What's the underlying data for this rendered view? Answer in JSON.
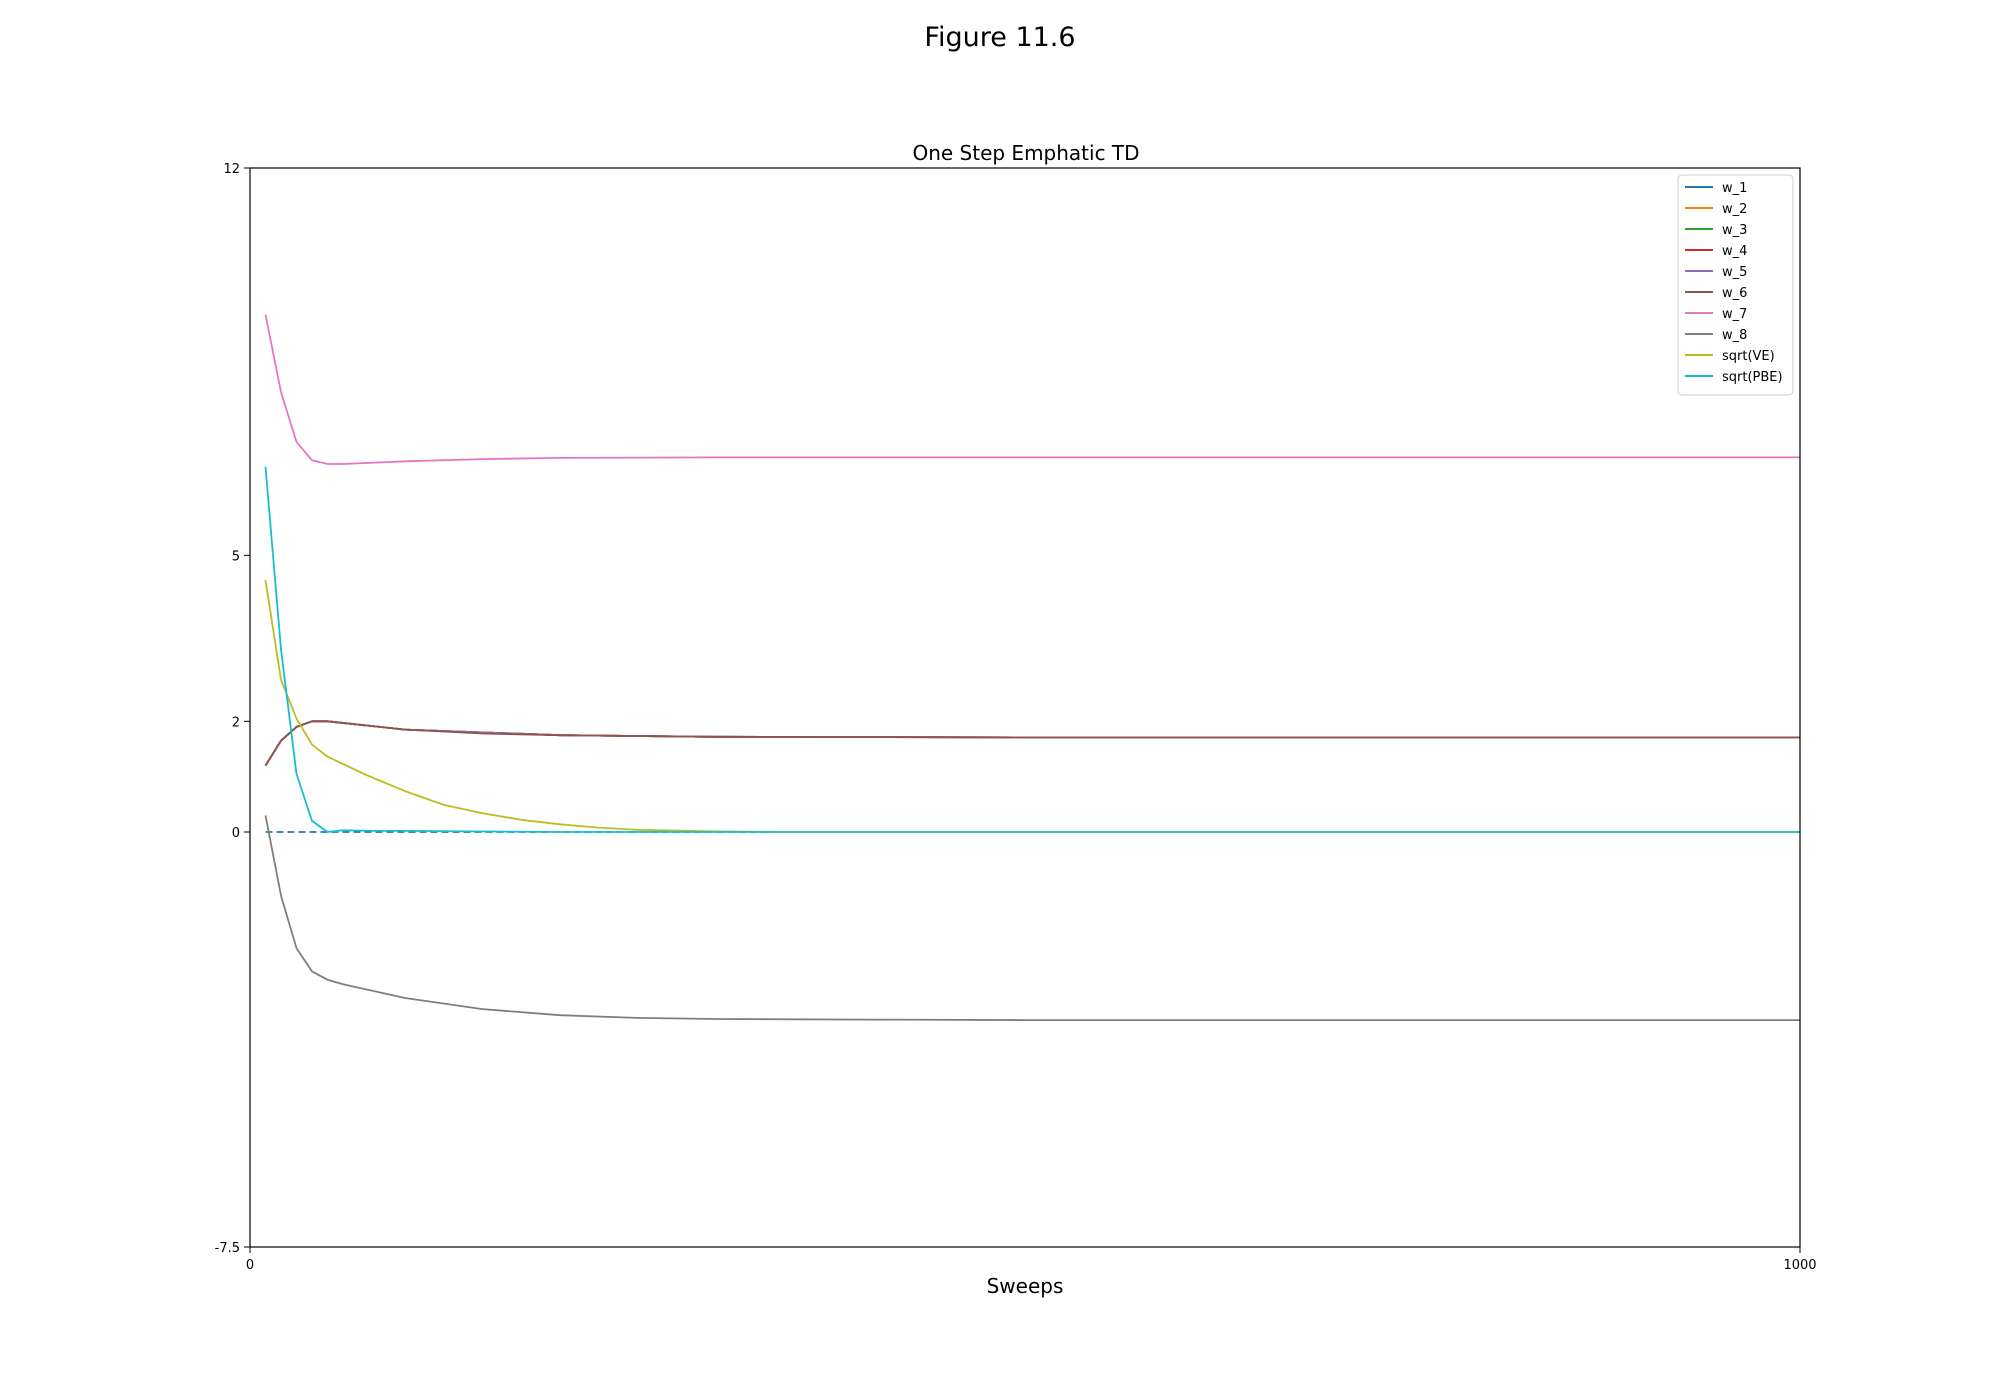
{
  "figure": {
    "title": "Figure 11.6"
  },
  "chart_data": {
    "type": "line",
    "title": "One Step Emphatic TD",
    "xlabel": "Sweeps",
    "ylabel": "",
    "xlim": [
      0,
      1000
    ],
    "ylim": [
      -7.5,
      12
    ],
    "xticks": [
      "0",
      "1000"
    ],
    "yticks": [
      {
        "value": 12,
        "label": "12"
      },
      {
        "value": 5,
        "label": "5"
      },
      {
        "value": 2,
        "label": "2"
      },
      {
        "value": 0,
        "label": "0"
      },
      {
        "value": -7.5,
        "label": "-7.5"
      }
    ],
    "grid": false,
    "legend_position": "top-right",
    "series": [
      {
        "name": "w_1",
        "color": "#1f77b4",
        "x": [
          10,
          20,
          30,
          40,
          50,
          100,
          200,
          300,
          500,
          1000
        ],
        "values": [
          1.2,
          1.65,
          1.9,
          2.0,
          2.0,
          1.85,
          1.75,
          1.72,
          1.71,
          1.71
        ]
      },
      {
        "name": "w_2",
        "color": "#ff7f0e",
        "x": [
          10,
          20,
          30,
          40,
          50,
          100,
          200,
          300,
          500,
          1000
        ],
        "values": [
          1.2,
          1.65,
          1.9,
          2.0,
          2.0,
          1.85,
          1.75,
          1.72,
          1.71,
          1.71
        ]
      },
      {
        "name": "w_3",
        "color": "#2ca02c",
        "x": [
          10,
          20,
          30,
          40,
          50,
          100,
          200,
          300,
          500,
          1000
        ],
        "values": [
          1.2,
          1.65,
          1.9,
          2.0,
          2.0,
          1.85,
          1.75,
          1.72,
          1.71,
          1.71
        ]
      },
      {
        "name": "w_4",
        "color": "#d62728",
        "x": [
          10,
          20,
          30,
          40,
          50,
          100,
          200,
          300,
          500,
          1000
        ],
        "values": [
          1.2,
          1.65,
          1.9,
          2.0,
          2.0,
          1.85,
          1.75,
          1.72,
          1.71,
          1.71
        ]
      },
      {
        "name": "w_5",
        "color": "#9467bd",
        "x": [
          10,
          20,
          30,
          40,
          50,
          100,
          200,
          300,
          500,
          1000
        ],
        "values": [
          1.2,
          1.65,
          1.9,
          2.0,
          2.0,
          1.85,
          1.75,
          1.72,
          1.71,
          1.71
        ]
      },
      {
        "name": "w_6",
        "color": "#8c564b",
        "x": [
          10,
          20,
          30,
          40,
          50,
          100,
          150,
          200,
          300,
          500,
          1000
        ],
        "values": [
          1.2,
          1.65,
          1.9,
          2.0,
          2.0,
          1.85,
          1.78,
          1.75,
          1.72,
          1.71,
          1.71
        ]
      },
      {
        "name": "w_7",
        "color": "#e377c2",
        "x": [
          10,
          20,
          30,
          40,
          50,
          60,
          100,
          150,
          200,
          300,
          500,
          1000
        ],
        "values": [
          9.35,
          7.95,
          7.05,
          6.72,
          6.65,
          6.65,
          6.7,
          6.74,
          6.76,
          6.77,
          6.77,
          6.77
        ]
      },
      {
        "name": "w_8",
        "color": "#7f7f7f",
        "x": [
          10,
          20,
          30,
          40,
          50,
          60,
          100,
          150,
          200,
          250,
          300,
          400,
          500,
          1000
        ],
        "values": [
          0.3,
          -1.15,
          -2.1,
          -2.52,
          -2.67,
          -2.75,
          -3.0,
          -3.2,
          -3.31,
          -3.36,
          -3.38,
          -3.39,
          -3.4,
          -3.4
        ]
      },
      {
        "name": "sqrt(VE)",
        "color": "#bcbd22",
        "x": [
          10,
          20,
          30,
          40,
          50,
          75,
          100,
          125,
          150,
          175,
          200,
          225,
          250,
          300,
          350,
          400,
          500,
          1000
        ],
        "values": [
          4.55,
          2.75,
          2.05,
          1.58,
          1.36,
          1.03,
          0.74,
          0.49,
          0.34,
          0.22,
          0.14,
          0.08,
          0.04,
          0.01,
          0.0,
          0.0,
          0.0,
          0.0
        ]
      },
      {
        "name": "sqrt(PBE)",
        "color": "#17becf",
        "x": [
          10,
          20,
          30,
          40,
          50,
          60,
          80,
          100,
          200,
          500,
          1000
        ],
        "values": [
          6.6,
          3.3,
          1.05,
          0.2,
          0.0,
          0.03,
          0.02,
          0.02,
          0.0,
          0.0,
          0.0
        ]
      }
    ],
    "reference_line": {
      "y": 0,
      "style": "dashed",
      "color": "#1f77b4"
    }
  }
}
